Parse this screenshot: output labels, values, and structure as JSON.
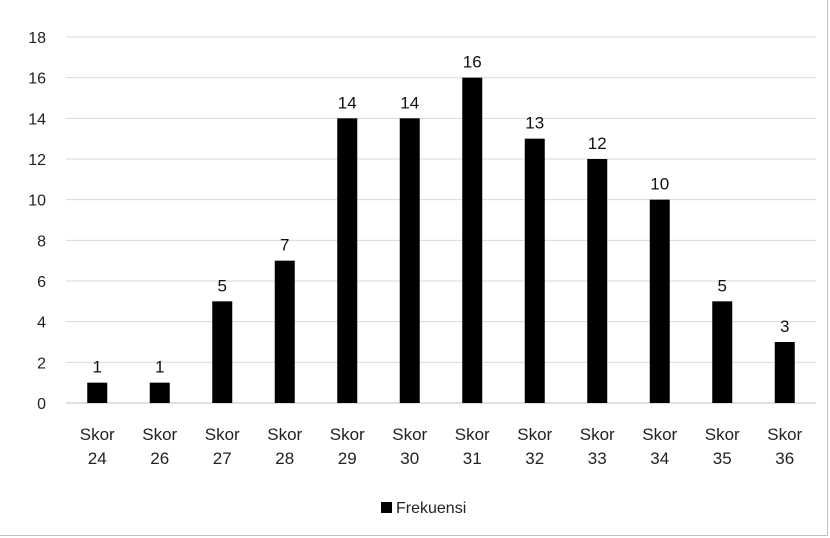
{
  "chart_data": {
    "type": "bar",
    "categories": [
      "Skor 24",
      "Skor 26",
      "Skor 27",
      "Skor 28",
      "Skor 29",
      "Skor 30",
      "Skor 31",
      "Skor 32",
      "Skor 33",
      "Skor 34",
      "Skor 35",
      "Skor 36"
    ],
    "category_lines": [
      [
        "Skor",
        "24"
      ],
      [
        "Skor",
        "26"
      ],
      [
        "Skor",
        "27"
      ],
      [
        "Skor",
        "28"
      ],
      [
        "Skor",
        "29"
      ],
      [
        "Skor",
        "30"
      ],
      [
        "Skor",
        "31"
      ],
      [
        "Skor",
        "32"
      ],
      [
        "Skor",
        "33"
      ],
      [
        "Skor",
        "34"
      ],
      [
        "Skor",
        "35"
      ],
      [
        "Skor",
        "36"
      ]
    ],
    "series": [
      {
        "name": "Frekuensi",
        "values": [
          1,
          1,
          5,
          7,
          14,
          14,
          16,
          13,
          12,
          10,
          5,
          3
        ],
        "color": "#000000"
      }
    ],
    "yticks": [
      0,
      2,
      4,
      6,
      8,
      10,
      12,
      14,
      16,
      18
    ],
    "ylim": [
      0,
      18
    ],
    "grid": true,
    "legend_position": "bottom",
    "data_labels": true
  }
}
